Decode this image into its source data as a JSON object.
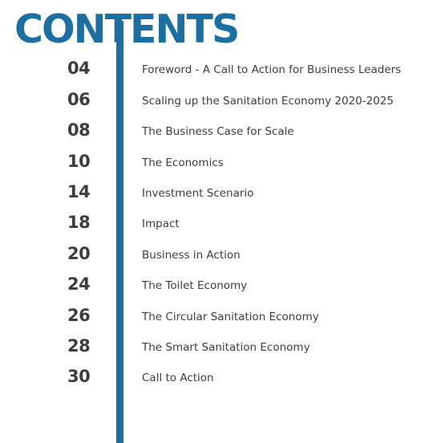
{
  "heading": "CONTENTS",
  "colors": {
    "accent": "#1b6fa3",
    "text": "#3d3d3d"
  },
  "entries": [
    {
      "page": "04",
      "title": "Foreword - A Call to Action for Business Leaders"
    },
    {
      "page": "06",
      "title": "Scaling up the Sanitation Economy 2020-2025"
    },
    {
      "page": "08",
      "title": "The Business Case for Scale"
    },
    {
      "page": "10",
      "title": "The Economics"
    },
    {
      "page": "14",
      "title": "Investment Scenario"
    },
    {
      "page": "18",
      "title": "Impact"
    },
    {
      "page": "20",
      "title": "Business in Action"
    },
    {
      "page": "24",
      "title": "The Toilet Economy"
    },
    {
      "page": "26",
      "title": "The Circular Sanitation Economy"
    },
    {
      "page": "28",
      "title": "The Smart Sanitation Economy"
    },
    {
      "page": "30",
      "title": "Call to Action"
    }
  ]
}
